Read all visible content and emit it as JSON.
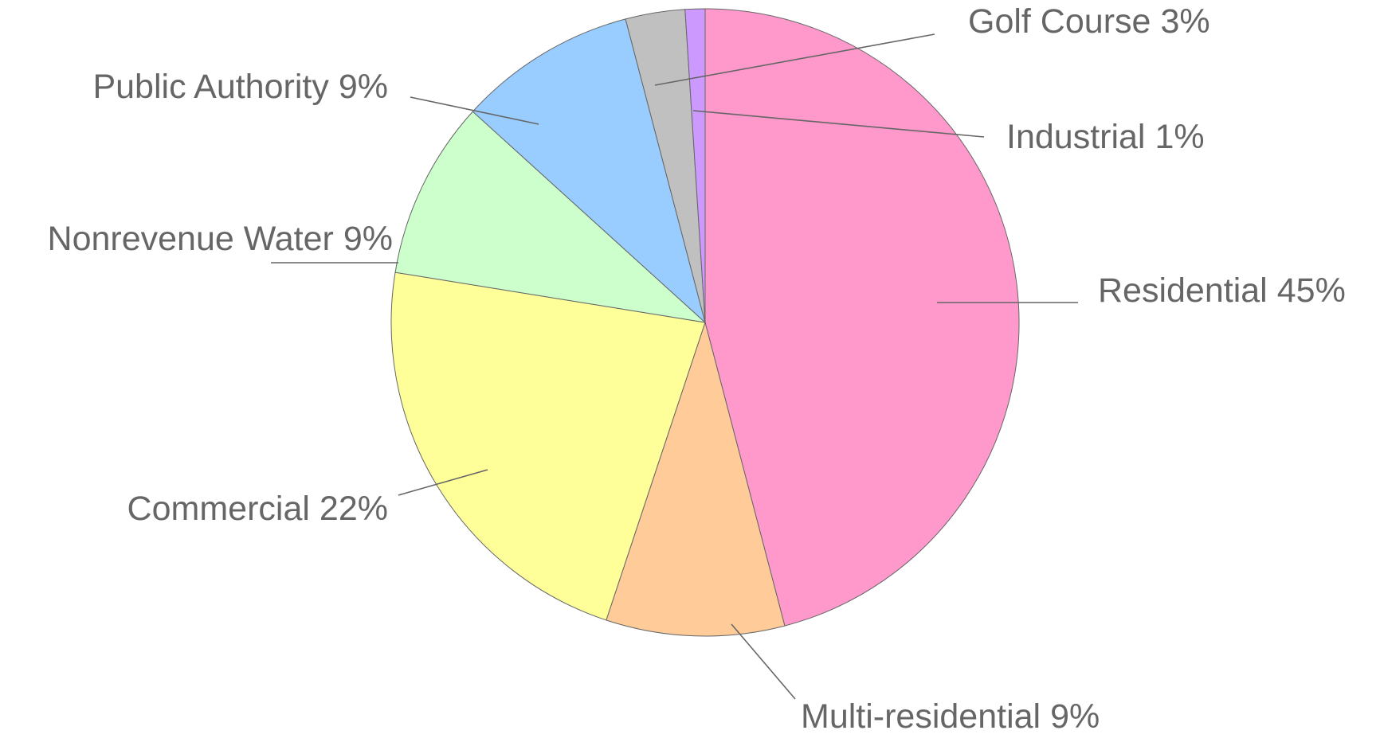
{
  "chart_data": {
    "type": "pie",
    "categories": [
      "Residential",
      "Multi-residential",
      "Commercial",
      "Nonrevenue Water",
      "Public Authority",
      "Golf Course",
      "Industrial"
    ],
    "values": [
      45,
      9,
      22,
      9,
      9,
      3,
      1
    ],
    "value_labels": [
      "45%",
      "9%",
      "22%",
      "9%",
      "9%",
      "3%",
      "1%"
    ],
    "colors": [
      "#ff99cc",
      "#ffcc99",
      "#ffff99",
      "#ccffcc",
      "#99ccff",
      "#c0c0c0",
      "#cc99ff"
    ]
  }
}
